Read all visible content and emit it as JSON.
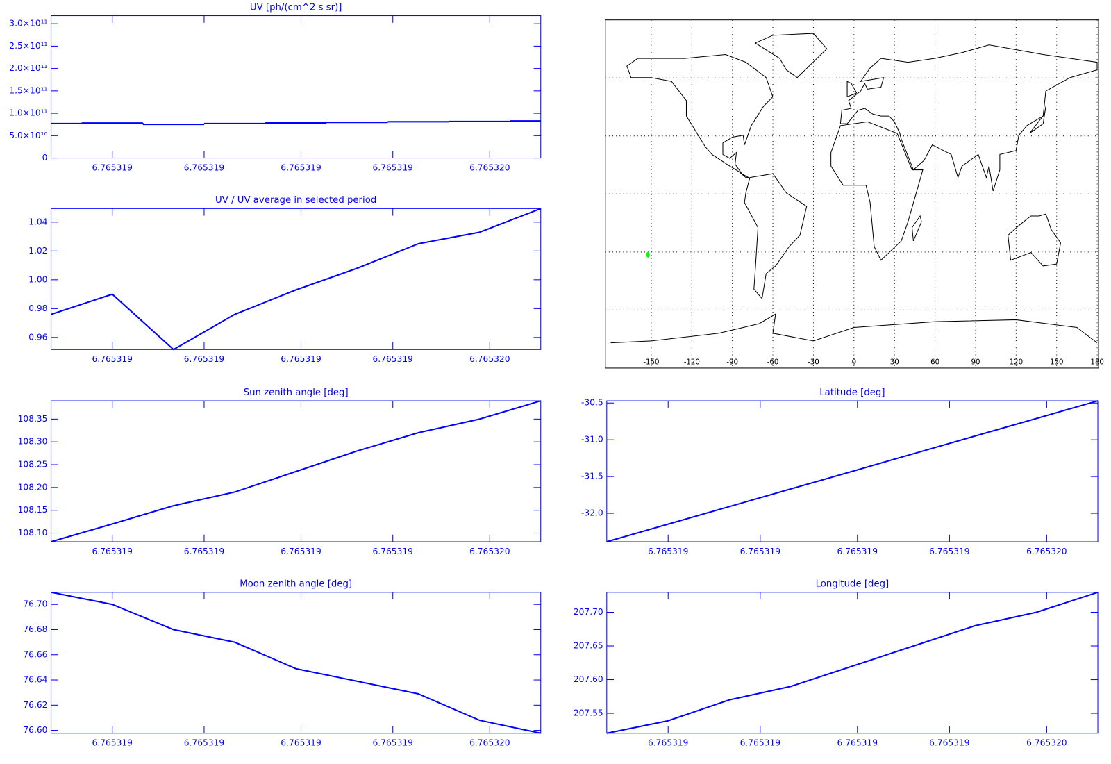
{
  "chart_data": [
    {
      "type": "step",
      "title": "UV [ph/(cm^2 s sr)]",
      "color": "#0000ff",
      "axis_color": "#0000ff",
      "x": [
        6.76531868,
        6.7653188,
        6.76531892,
        6.76531904,
        6.76531916,
        6.76531928,
        6.7653194,
        6.76531952,
        6.76531964
      ],
      "values": [
        77100000000,
        78200000000,
        75100000000,
        77100000000,
        78400000000,
        79600000000,
        81000000000,
        81600000000,
        82900000000
      ],
      "xlim": [
        6.76531868,
        6.76531964
      ],
      "xticks": [
        {
          "value": 6.7653188,
          "label": "6.765319"
        },
        {
          "value": 6.76531898,
          "label": "6.765319"
        },
        {
          "value": 6.76531917,
          "label": "6.765319"
        },
        {
          "value": 6.76531935,
          "label": "6.765319"
        },
        {
          "value": 6.76531954,
          "label": "6.765320"
        }
      ],
      "ylim": [
        0,
        318000000000
      ],
      "yticks": [
        0,
        {
          "value": 50000000000,
          "label": "5.0×10¹⁰"
        },
        {
          "value": 100000000000,
          "label": "1.0×10¹¹"
        },
        {
          "value": 150000000000,
          "label": "1.5×10¹¹"
        },
        {
          "value": 200000000000,
          "label": "2.0×10¹¹"
        },
        {
          "value": 250000000000,
          "label": "2.5×10¹¹"
        },
        {
          "value": 300000000000,
          "label": "3.0×10¹¹"
        }
      ]
    },
    {
      "type": "map",
      "axis_color": "#000000",
      "xlim": [
        -184,
        181
      ],
      "xticks": [
        -150,
        -120,
        -90,
        -60,
        -30,
        0,
        30,
        60,
        90,
        120,
        150,
        180
      ],
      "ylim": [
        -90,
        90
      ],
      "ygrid": [
        -60,
        -30,
        0,
        30,
        60
      ],
      "grid": true,
      "points": {
        "x": [
          -152.4
        ],
        "y": [
          -31.4
        ],
        "color": "#00ff00"
      }
    },
    {
      "type": "line",
      "title": "UV / UV average in selected period",
      "color": "#0000ff",
      "axis_color": "#0000ff",
      "x": [
        6.76531868,
        6.7653188,
        6.76531892,
        6.76531904,
        6.76531916,
        6.76531928,
        6.7653194,
        6.76531952,
        6.76531964
      ],
      "values": [
        0.976,
        0.99,
        0.9516,
        0.976,
        0.993,
        1.008,
        1.025,
        1.033,
        1.0494
      ],
      "xlim": [
        6.76531868,
        6.76531964
      ],
      "xticks": [
        {
          "value": 6.7653188,
          "label": "6.765319"
        },
        {
          "value": 6.76531898,
          "label": "6.765319"
        },
        {
          "value": 6.76531917,
          "label": "6.765319"
        },
        {
          "value": 6.76531935,
          "label": "6.765319"
        },
        {
          "value": 6.76531954,
          "label": "6.765320"
        }
      ],
      "ylim": [
        0.9516,
        1.0494
      ],
      "yticks": [
        0.96,
        0.98,
        {
          "value": 1,
          "label": "1.00"
        },
        1.02,
        1.04
      ]
    },
    {
      "type": "line",
      "title": "Sun zenith angle [deg]",
      "color": "#0000ff",
      "axis_color": "#0000ff",
      "x": [
        6.76531868,
        6.7653188,
        6.76531892,
        6.76531904,
        6.76531916,
        6.76531928,
        6.7653194,
        6.76531952,
        6.76531964
      ],
      "values": [
        108.081,
        108.12,
        108.16,
        108.19,
        108.235,
        108.28,
        108.32,
        108.35,
        108.39
      ],
      "xlim": [
        6.76531868,
        6.76531964
      ],
      "xticks": [
        {
          "value": 6.7653188,
          "label": "6.765319"
        },
        {
          "value": 6.76531898,
          "label": "6.765319"
        },
        {
          "value": 6.76531917,
          "label": "6.765319"
        },
        {
          "value": 6.76531935,
          "label": "6.765319"
        },
        {
          "value": 6.76531954,
          "label": "6.765320"
        }
      ],
      "ylim": [
        108.081,
        108.39
      ],
      "yticks": [
        {
          "value": 108.1,
          "label": "108.10"
        },
        108.15,
        {
          "value": 108.2,
          "label": "108.20"
        },
        108.25,
        {
          "value": 108.3,
          "label": "108.30"
        },
        108.35
      ]
    },
    {
      "type": "line",
      "title": "Latitude [deg]",
      "color": "#0000ff",
      "axis_color": "#0000ff",
      "x": [
        6.76531868,
        6.7653188,
        6.76531892,
        6.76531904,
        6.76531916,
        6.76531928,
        6.7653194,
        6.76531952,
        6.76531964
      ],
      "values": [
        -32.387,
        -32.147,
        -31.908,
        -31.668,
        -31.429,
        -31.189,
        -30.949,
        -30.71,
        -30.47
      ],
      "xlim": [
        6.76531868,
        6.76531964
      ],
      "xticks": [
        {
          "value": 6.7653188,
          "label": "6.765319"
        },
        {
          "value": 6.76531898,
          "label": "6.765319"
        },
        {
          "value": 6.76531917,
          "label": "6.765319"
        },
        {
          "value": 6.76531935,
          "label": "6.765319"
        },
        {
          "value": 6.76531954,
          "label": "6.765320"
        }
      ],
      "ylim": [
        -32.387,
        -30.47
      ],
      "yticks": [
        {
          "value": -32,
          "label": "-32.0"
        },
        -31.5,
        {
          "value": -31,
          "label": "-31.0"
        },
        -30.5
      ]
    },
    {
      "type": "line",
      "title": "Moon zenith angle [deg]",
      "color": "#0000ff",
      "axis_color": "#0000ff",
      "x": [
        6.76531868,
        6.7653188,
        6.76531892,
        6.76531904,
        6.76531916,
        6.76531928,
        6.7653194,
        6.76531952,
        6.76531964
      ],
      "values": [
        76.7096,
        76.7,
        76.68,
        76.67,
        76.649,
        76.639,
        76.629,
        76.608,
        76.5977
      ],
      "xlim": [
        6.76531868,
        6.76531964
      ],
      "xticks": [
        {
          "value": 6.7653188,
          "label": "6.765319"
        },
        {
          "value": 6.76531898,
          "label": "6.765319"
        },
        {
          "value": 6.76531917,
          "label": "6.765319"
        },
        {
          "value": 6.76531935,
          "label": "6.765319"
        },
        {
          "value": 6.76531954,
          "label": "6.765320"
        }
      ],
      "ylim": [
        76.5977,
        76.7096
      ],
      "yticks": [
        {
          "value": 76.6,
          "label": "76.60"
        },
        76.62,
        76.64,
        76.66,
        76.68,
        {
          "value": 76.7,
          "label": "76.70"
        }
      ]
    },
    {
      "type": "line",
      "title": "Longitude [deg]",
      "color": "#0000ff",
      "axis_color": "#0000ff",
      "x": [
        6.76531868,
        6.7653188,
        6.76531892,
        6.76531904,
        6.76531916,
        6.76531928,
        6.7653194,
        6.76531952,
        6.76531964
      ],
      "values": [
        207.5204,
        207.539,
        207.57,
        207.59,
        207.62,
        207.65,
        207.68,
        207.7,
        207.7296
      ],
      "xlim": [
        6.76531868,
        6.76531964
      ],
      "xticks": [
        {
          "value": 6.7653188,
          "label": "6.765319"
        },
        {
          "value": 6.76531898,
          "label": "6.765319"
        },
        {
          "value": 6.76531917,
          "label": "6.765319"
        },
        {
          "value": 6.76531935,
          "label": "6.765319"
        },
        {
          "value": 6.76531954,
          "label": "6.765320"
        }
      ],
      "ylim": [
        207.5204,
        207.7296
      ],
      "yticks": [
        207.55,
        {
          "value": 207.6,
          "label": "207.60"
        },
        207.65,
        {
          "value": 207.7,
          "label": "207.70"
        }
      ]
    }
  ]
}
